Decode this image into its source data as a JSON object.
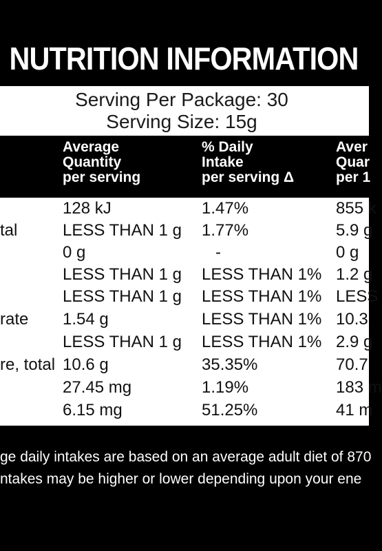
{
  "title": "NUTRITION INFORMATION",
  "serving": {
    "per_package": "Serving Per Package: 30",
    "size": "Serving Size: 15g"
  },
  "headers": {
    "col1": [
      "Average",
      "Quantity",
      "per serving"
    ],
    "col2": [
      "% Daily",
      "Intake",
      "per serving Δ"
    ],
    "col3": [
      "Aver",
      "Quar",
      "per 1"
    ]
  },
  "rows": [
    {
      "label": "",
      "qty": "128 kJ",
      "pct": "1.47%",
      "q100": "855 k"
    },
    {
      "label": "tal",
      "qty": "LESS THAN 1 g",
      "pct": "1.77%",
      "q100": "5.9 g"
    },
    {
      "label": "",
      "qty": "0 g",
      "pct": "-",
      "q100": "0 g"
    },
    {
      "label": "",
      "qty": "LESS THAN 1 g",
      "pct": "LESS THAN 1%",
      "q100": "1.2 g"
    },
    {
      "label": "",
      "qty": "LESS THAN 1 g",
      "pct": "LESS THAN 1%",
      "q100": "LESS"
    },
    {
      "label": "rate",
      "qty": "1.54 g",
      "pct": "LESS THAN 1%",
      "q100": "10.3"
    },
    {
      "label": "",
      "qty": "LESS THAN 1 g",
      "pct": "LESS THAN 1%",
      "q100": "2.9 g"
    },
    {
      "label": "re, total",
      "qty": "10.6 g",
      "pct": "35.35%",
      "q100": "70.7"
    },
    {
      "label": "",
      "qty": "27.45 mg",
      "pct": "1.19%",
      "q100": "183 m"
    },
    {
      "label": "",
      "qty": "6.15 mg",
      "pct": "51.25%",
      "q100": "41 m"
    }
  ],
  "footnote": {
    "line1": "ge daily intakes are based on an average adult diet of 870",
    "line2": "ntakes may be higher or lower depending upon your ene"
  }
}
